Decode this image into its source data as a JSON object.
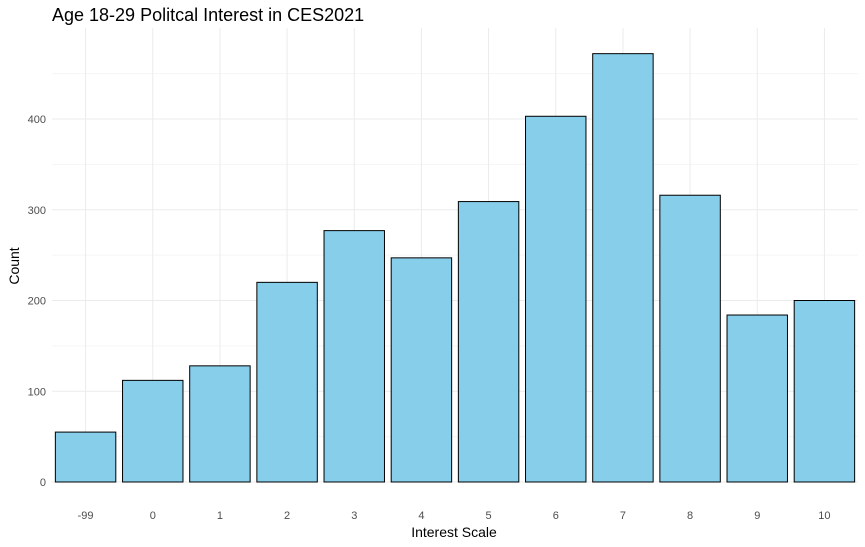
{
  "chart_data": {
    "type": "bar",
    "title": "Age 18-29 Politcal Interest in CES2021",
    "xlabel": "Interest Scale",
    "ylabel": "Count",
    "categories": [
      "-99",
      "0",
      "1",
      "2",
      "3",
      "4",
      "5",
      "6",
      "7",
      "8",
      "9",
      "10"
    ],
    "values": [
      55,
      112,
      128,
      220,
      277,
      247,
      309,
      403,
      472,
      316,
      184,
      200
    ],
    "ylim": [
      0,
      495
    ],
    "yticks": [
      "0",
      "100",
      "200",
      "300",
      "400"
    ],
    "grid": true,
    "legend": "none",
    "colors": {
      "bar_fill": "#87ceeb",
      "bar_stroke": "#000000",
      "grid_major": "#ebebeb",
      "grid_minor": "#f5f5f5"
    }
  }
}
